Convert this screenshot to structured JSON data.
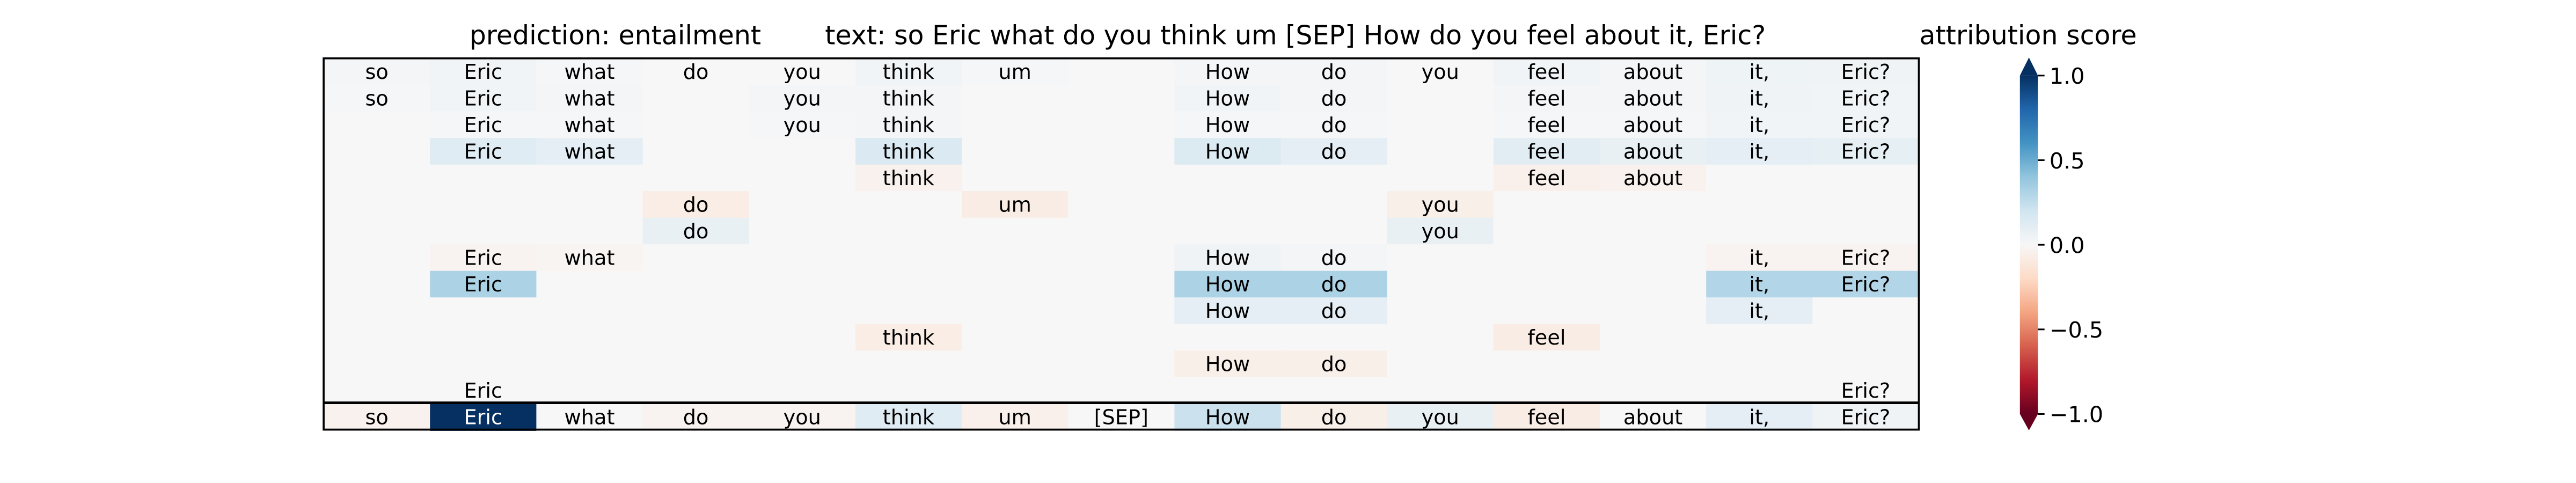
{
  "chart_data": {
    "type": "heatmap",
    "title_prediction": "prediction:  entailment",
    "title_text": "text:  so Eric what do you think um [SEP] How do you feel about it, Eric?",
    "colorbar_label": "attribution score",
    "colorbar_ticks": [
      "1.0",
      "0.5",
      "0.0",
      "−0.5",
      "−1.0"
    ],
    "colorbar_range": [
      -1.0,
      1.0
    ],
    "colormap": "RdBu",
    "tokens": [
      "so",
      "Eric",
      "what",
      "do",
      "you",
      "think",
      "um",
      "[SEP]",
      "How",
      "do",
      "you",
      "feel",
      "about",
      "it,",
      "Eric?"
    ],
    "rows": [
      {
        "shown": [
          0,
          1,
          2,
          3,
          4,
          5,
          6,
          8,
          9,
          10,
          11,
          12,
          13,
          14
        ],
        "values": [
          0.02,
          0.03,
          0.01,
          0.0,
          0.0,
          0.03,
          0.01,
          0,
          0.02,
          0.02,
          0.0,
          0.03,
          0.02,
          0.05,
          0.04
        ]
      },
      {
        "shown": [
          0,
          1,
          2,
          4,
          5,
          8,
          9,
          11,
          12,
          13,
          14
        ],
        "values": [
          0.01,
          0.03,
          0.02,
          0,
          0.02,
          0.02,
          0,
          0,
          0.03,
          0.02,
          0,
          0.02,
          0.02,
          0.04,
          0.03
        ]
      },
      {
        "shown": [
          1,
          2,
          4,
          5,
          8,
          9,
          11,
          12,
          13,
          14
        ],
        "values": [
          0,
          0.01,
          0.01,
          0,
          0.01,
          0.02,
          0,
          0,
          0.01,
          0.01,
          0,
          0.01,
          0.01,
          0.03,
          0.03
        ]
      },
      {
        "shown": [
          1,
          2,
          5,
          8,
          9,
          11,
          12,
          13,
          14
        ],
        "values": [
          0,
          0.12,
          0.1,
          0,
          0,
          0.15,
          0,
          0,
          0.14,
          0.1,
          0,
          0.11,
          0.08,
          0.1,
          0.09
        ]
      },
      {
        "shown": [
          5,
          11,
          12
        ],
        "values": [
          0,
          0,
          0,
          0,
          0,
          -0.04,
          0,
          0,
          0,
          0,
          0,
          -0.05,
          -0.04,
          0,
          0
        ]
      },
      {
        "shown": [
          3,
          6,
          10
        ],
        "values": [
          0,
          0,
          0,
          -0.07,
          0,
          0,
          -0.08,
          0,
          0,
          0,
          -0.06,
          0,
          0,
          0,
          0
        ]
      },
      {
        "shown": [
          3,
          10
        ],
        "values": [
          0,
          0,
          0,
          0.08,
          0,
          0,
          0,
          0,
          0,
          0,
          0.08,
          0,
          0,
          0,
          0
        ]
      },
      {
        "shown": [
          1,
          2,
          8,
          9,
          13,
          14
        ],
        "values": [
          0,
          -0.03,
          -0.02,
          0,
          0,
          0,
          0,
          0,
          0.04,
          0.02,
          0,
          0,
          0,
          -0.03,
          -0.03
        ]
      },
      {
        "shown": [
          1,
          8,
          9,
          13,
          14
        ],
        "values": [
          0,
          0.32,
          0,
          0,
          0,
          0,
          0,
          0,
          0.32,
          0.32,
          0,
          0,
          0,
          0.3,
          0.3
        ]
      },
      {
        "shown": [
          8,
          9,
          13
        ],
        "values": [
          0,
          0,
          0,
          0,
          0,
          0,
          0,
          0,
          0.1,
          0.1,
          0,
          0,
          0,
          0.1,
          0
        ]
      },
      {
        "shown": [
          5,
          11
        ],
        "values": [
          0,
          0,
          0,
          0,
          0,
          -0.07,
          0,
          0,
          0,
          0,
          0,
          -0.08,
          0,
          0,
          0
        ]
      },
      {
        "shown": [
          8,
          9
        ],
        "values": [
          0,
          0,
          0,
          0,
          0,
          0,
          0,
          0,
          -0.06,
          -0.06,
          0,
          0,
          0,
          0,
          0
        ]
      },
      {
        "shown": [
          1,
          14
        ],
        "values": [
          0,
          0,
          0,
          0,
          0,
          0,
          0,
          0,
          0,
          0,
          0,
          0,
          0,
          0,
          0
        ]
      }
    ],
    "summary_row": {
      "values": [
        -0.04,
        1.0,
        0.0,
        -0.03,
        -0.03,
        0.12,
        -0.05,
        0.0,
        0.22,
        -0.06,
        0.08,
        -0.08,
        0.0,
        0.1,
        0.04
      ]
    }
  }
}
